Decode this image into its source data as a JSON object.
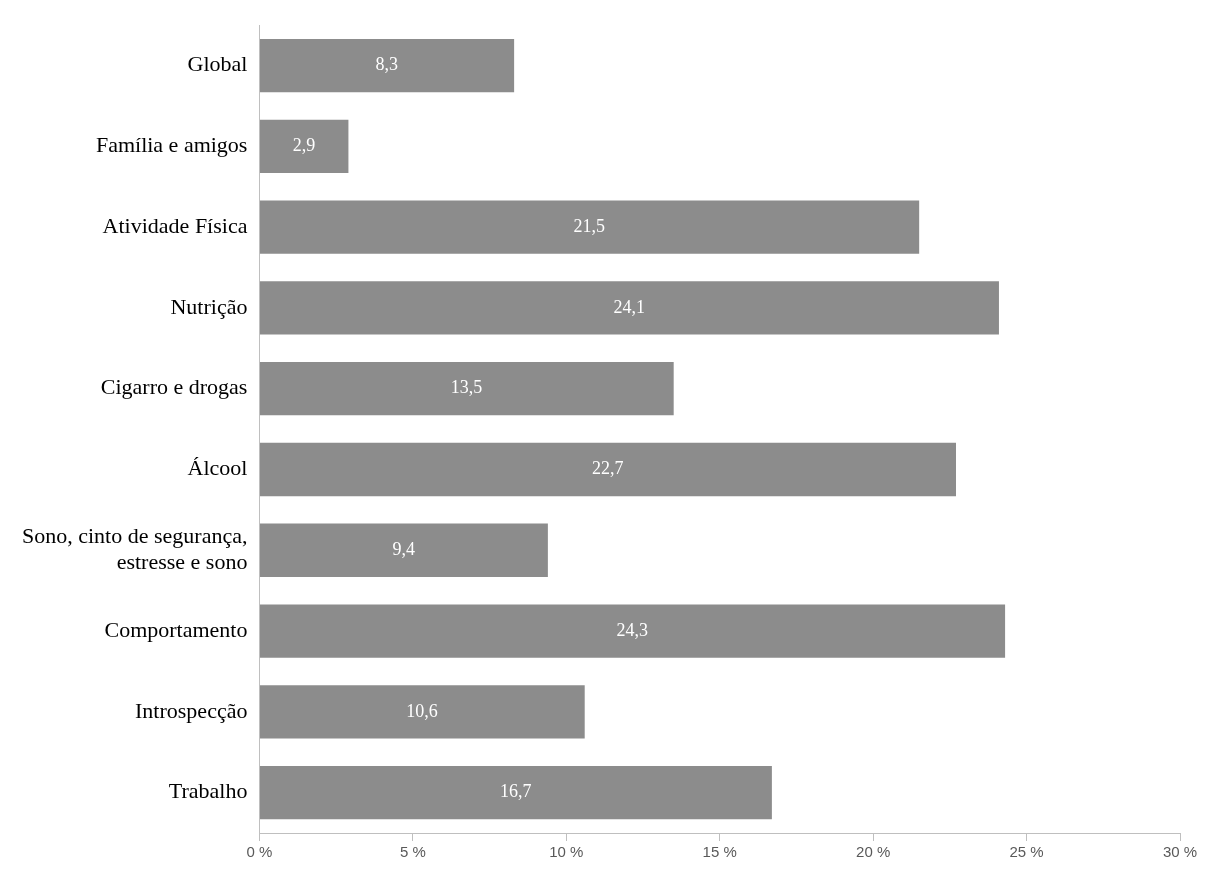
{
  "chart_data": {
    "type": "bar",
    "orientation": "horizontal",
    "categories": [
      "Global",
      "Família e amigos",
      "Atividade Física",
      "Nutrição",
      "Cigarro e drogas",
      "Álcool",
      "Sono, cinto de segurança, estresse e sono",
      "Comportamento",
      "Introspecção",
      "Trabalho"
    ],
    "values": [
      8.3,
      2.9,
      21.5,
      24.1,
      13.5,
      22.7,
      9.4,
      24.3,
      10.6,
      16.7
    ],
    "value_labels": [
      "8,3",
      "2,9",
      "21,5",
      "24,1",
      "13,5",
      "22,7",
      "9,4",
      "24,3",
      "10,6",
      "16,7"
    ],
    "color": "#8c8c8c",
    "xlim": [
      0,
      30
    ],
    "xticks": [
      {
        "value": 0,
        "label": "0 %"
      },
      {
        "value": 5,
        "label": "5 %"
      },
      {
        "value": 10,
        "label": "10 %"
      },
      {
        "value": 15,
        "label": "15 %"
      },
      {
        "value": 20,
        "label": "20 %"
      },
      {
        "value": 25,
        "label": "25 %"
      },
      {
        "value": 30,
        "label": "30 %"
      }
    ],
    "grid": false,
    "legend": false
  }
}
